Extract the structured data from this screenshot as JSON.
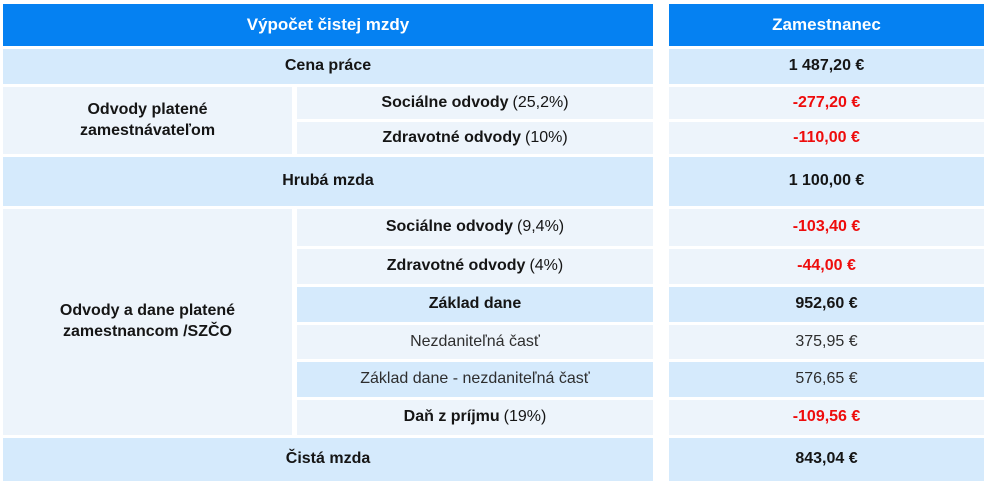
{
  "header": {
    "title": "Výpočet čistej mzdy",
    "value_column_title": "Zamestnanec"
  },
  "colors": {
    "header_bg": "#0581f2",
    "row_blue": "#d5eafc",
    "row_pale": "#edf4fb",
    "negative_value": "#ee0c0c"
  },
  "rows": {
    "cena_prace": {
      "label": "Cena práce",
      "value": "1 487,20 €"
    },
    "hruba_mzda": {
      "label": "Hrubá mzda",
      "value": "1 100,00 €"
    },
    "cista_mzda": {
      "label": "Čistá mzda",
      "value": "843,04 €"
    }
  },
  "group_employer": {
    "label": "Odvody platené zamestnávateľom",
    "rows": {
      "socialne": {
        "label": "Sociálne odvody",
        "rate": "(25,2%)",
        "value": "-277,20 €"
      },
      "zdravotne": {
        "label": "Zdravotné odvody",
        "rate": "(10%)",
        "value": "-110,00 €"
      }
    }
  },
  "group_employee": {
    "label": "Odvody a dane platené zamestnancom /SZČO",
    "rows": {
      "socialne": {
        "label": "Sociálne odvody",
        "rate": "(9,4%)",
        "value": "-103,40 €"
      },
      "zdravotne": {
        "label": "Zdravotné odvody",
        "rate": "(4%)",
        "value": "-44,00 €"
      },
      "zaklad_dane": {
        "label": "Základ dane",
        "value": "952,60 €"
      },
      "nezdanitelna": {
        "label": "Nezdaniteľná časť",
        "value": "375,95 €"
      },
      "zaklad_minus": {
        "label": "Základ dane - nezdaniteľná časť",
        "value": "576,65 €"
      },
      "dan_z_prijmu": {
        "label": "Daň z príjmu",
        "rate": "(19%)",
        "value": "-109,56 €"
      }
    }
  }
}
